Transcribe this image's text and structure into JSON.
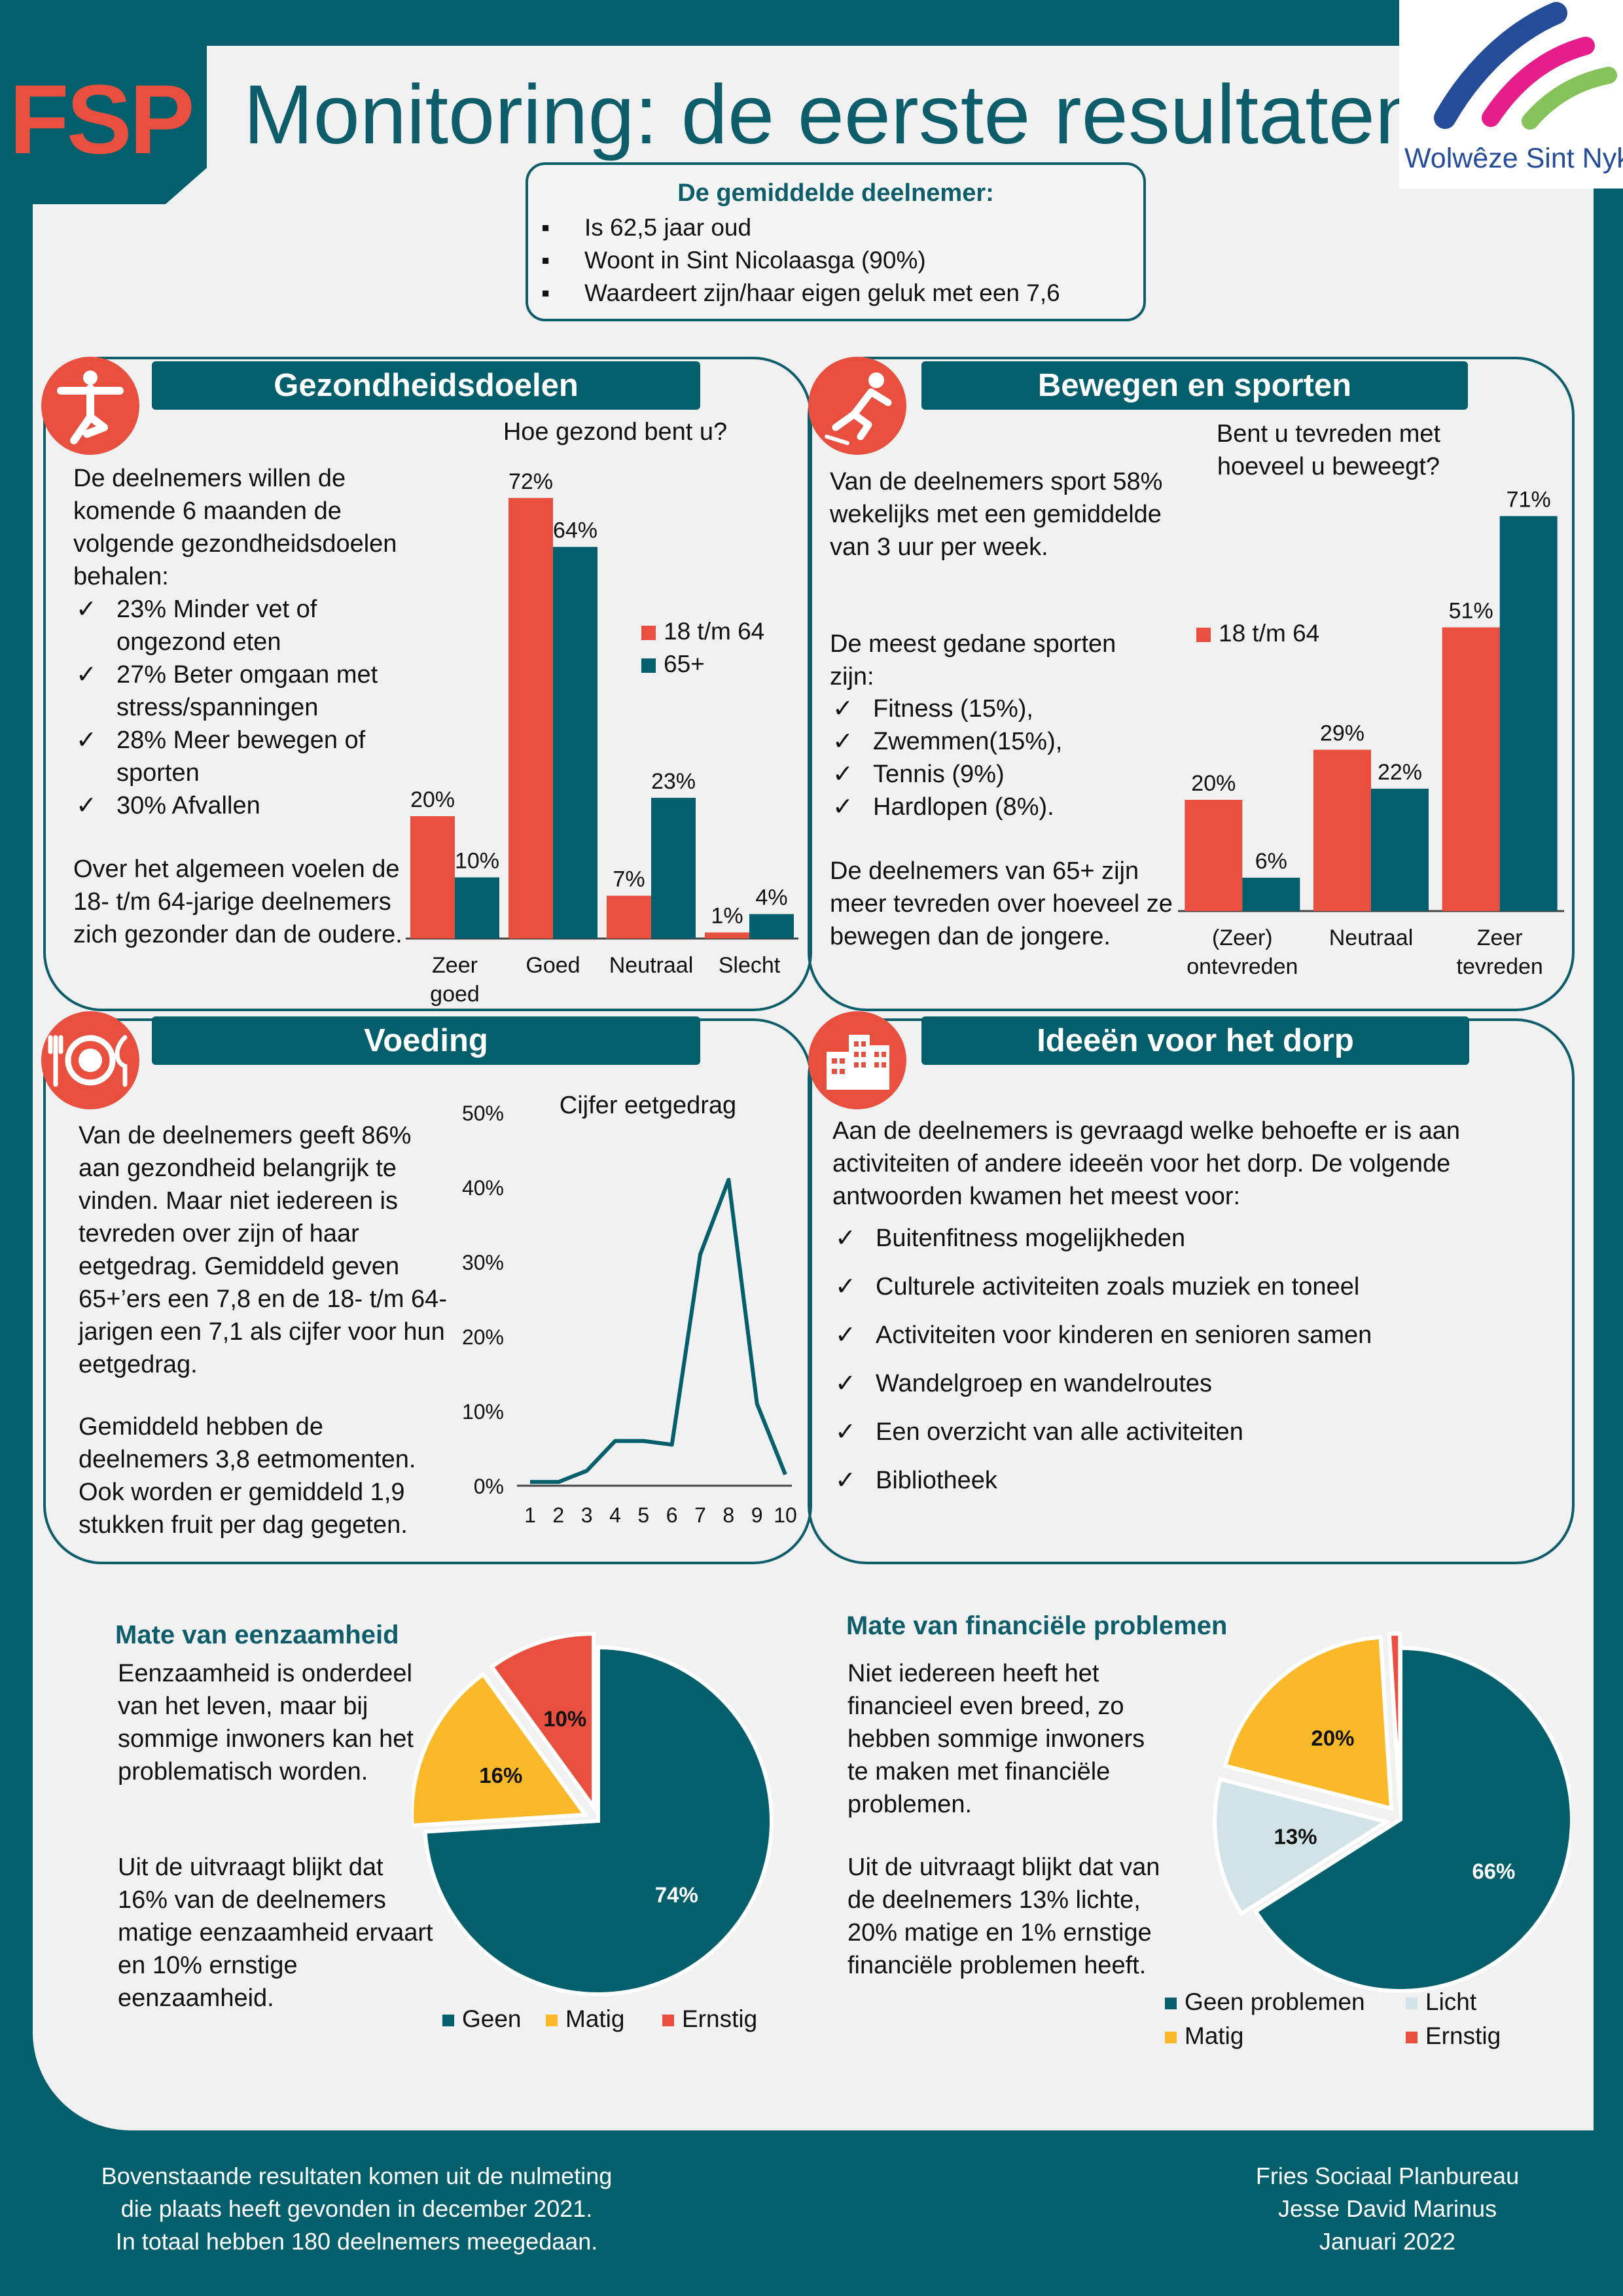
{
  "header": {
    "logo_text": "FSP",
    "title": "Monitoring: de eerste resultaten",
    "partner_logo_text": "Wolwêze Sint Nyk"
  },
  "participant_box": {
    "title": "De gemiddelde deelnemer:",
    "items": [
      "Is 62,5 jaar oud",
      "Woont in Sint Nicolaasga (90%)",
      "Waardeert zijn/haar eigen geluk met een 7,6"
    ]
  },
  "health": {
    "heading": "Gezondheidsdoelen",
    "icon": "yoga-icon",
    "intro": "De deelnemers willen de komende 6 maanden de volgende gezondheidsdoelen behalen:",
    "goals": [
      "23% Minder vet of ongezond eten",
      "27% Beter omgaan met stress/spanningen",
      "28% Meer bewegen of sporten",
      "30% Afvallen"
    ],
    "conclusion": "Over het algemeen voelen de 18- t/m 64-jarige deelnemers zich gezonder dan de oudere."
  },
  "sport": {
    "heading": "Bewegen en sporten",
    "icon": "skating-icon",
    "paragraph1": "Van de deelnemers sport 58% wekelijks met een gemiddelde van 3 uur per week.",
    "sports_intro": "De meest gedane sporten zijn:",
    "sports": [
      "Fitness (15%),",
      "Zwemmen(15%),",
      "Tennis (9%)",
      "Hardlopen (8%)."
    ],
    "conclusion": "De deelnemers van 65+ zijn meer tevreden over hoeveel ze bewegen dan de jongere."
  },
  "food": {
    "heading": "Voeding",
    "icon": "plate-cutlery-icon",
    "paragraph1": "Van de deelnemers geeft 86% aan gezondheid belangrijk te vinden. Maar niet iedereen is tevreden over zijn of haar eetgedrag. Gemiddeld geven 65+’ers een 7,8 en de 18- t/m 64-jarigen een 7,1 als cijfer voor hun eetgedrag.",
    "paragraph2": "Gemiddeld hebben de deelnemers 3,8 eetmomenten. Ook worden er gemiddeld 1,9 stukken fruit per dag gegeten."
  },
  "ideas": {
    "heading": "Ideeën voor het dorp",
    "icon": "buildings-icon",
    "intro": "Aan de deelnemers is gevraagd welke behoefte er is aan activiteiten of andere ideeën voor het dorp. De volgende antwoorden kwamen het meest voor:",
    "items": [
      "Buitenfitness mogelijkheden",
      "Culturele activiteiten zoals muziek en toneel",
      "Activiteiten voor kinderen en senioren samen",
      "Wandelgroep en wandelroutes",
      "Een overzicht van alle activiteiten",
      "Bibliotheek"
    ]
  },
  "loneliness": {
    "heading": "Mate van eenzaamheid",
    "paragraph1": "Eenzaamheid is onderdeel van het leven, maar bij sommige inwoners kan het problematisch worden.",
    "paragraph2": "Uit de uitvraagt blijkt dat 16% van de deelnemers matige eenzaamheid ervaart en 10% ernstige eenzaamheid."
  },
  "finance": {
    "heading": "Mate van financiële problemen",
    "paragraph1": "Niet iedereen heeft het financieel even breed, zo hebben sommige inwoners te maken met financiële problemen.",
    "paragraph2": "Uit de uitvraagt blijkt dat van de deelnemers 13% lichte, 20% matige en 1% ernstige financiële problemen heeft."
  },
  "footer": {
    "left": [
      "Bovenstaande resultaten komen uit de nulmeting",
      "die plaats heeft gevonden in december 2021.",
      "In totaal hebben 180 deelnemers meegedaan."
    ],
    "right": [
      "Fries Sociaal Planbureau",
      "Jesse David Marinus",
      "Januari 2022"
    ]
  },
  "colors": {
    "teal": "#045f6c",
    "red": "#e94f3f",
    "yellow": "#fbb92a",
    "light": "#d1e3e7",
    "panel": "#f1f1f1"
  },
  "chart_data": [
    {
      "id": "health",
      "type": "bar",
      "title": "Hoe gezond bent u?",
      "categories": [
        "Zeer goed",
        "Goed",
        "Neutraal",
        "Slecht"
      ],
      "series": [
        {
          "name": "18 t/m 64",
          "color": "#e94f3f",
          "values": [
            20,
            72,
            7,
            1
          ],
          "labels": [
            "20%",
            "72%",
            "7%",
            "1%"
          ]
        },
        {
          "name": "65+",
          "color": "#045f6c",
          "values": [
            10,
            64,
            23,
            4
          ],
          "labels": [
            "10%",
            "64%",
            "23%",
            "4%"
          ]
        }
      ],
      "legend": "right"
    },
    {
      "id": "movement",
      "type": "bar",
      "title": "Bent u tevreden met hoeveel u beweegt?",
      "categories": [
        "(Zeer) ontevreden",
        "Neutraal",
        "Zeer tevreden"
      ],
      "series": [
        {
          "name": "18 t/m 64",
          "color": "#e94f3f",
          "values": [
            20,
            29,
            51
          ],
          "labels": [
            "20%",
            "29%",
            "51%"
          ]
        },
        {
          "name": "",
          "color": "#045f6c",
          "values": [
            6,
            22,
            71
          ],
          "labels": [
            "6%",
            "22%",
            "71%"
          ]
        }
      ],
      "legend": "left"
    },
    {
      "id": "food",
      "type": "line",
      "title": "Cijfer eetgedrag",
      "x": [
        1,
        2,
        3,
        4,
        5,
        6,
        7,
        8,
        9,
        10
      ],
      "y": [
        0.5,
        0.5,
        2,
        6,
        6,
        5.5,
        31,
        41,
        11,
        1.5
      ],
      "ylim": [
        0,
        50
      ],
      "yticks": [
        "0%",
        "10%",
        "20%",
        "30%",
        "40%",
        "50%"
      ],
      "color": "#045f6c"
    },
    {
      "id": "loneliness",
      "type": "pie",
      "labels": [
        "Geen",
        "Matig",
        "Ernstig"
      ],
      "values": [
        74,
        16,
        10
      ],
      "value_labels": [
        "74%",
        "16%",
        "10%"
      ],
      "colors": [
        "#045f6c",
        "#fbb92a",
        "#e94f3f"
      ]
    },
    {
      "id": "finance",
      "type": "pie",
      "labels": [
        "Geen problemen",
        "Licht",
        "Matig",
        "Ernstig"
      ],
      "values": [
        66,
        13,
        20,
        1
      ],
      "value_labels": [
        "66%",
        "13%",
        "20%",
        "1%"
      ],
      "colors": [
        "#045f6c",
        "#d1e3e7",
        "#fbb92a",
        "#e94f3f"
      ]
    }
  ]
}
